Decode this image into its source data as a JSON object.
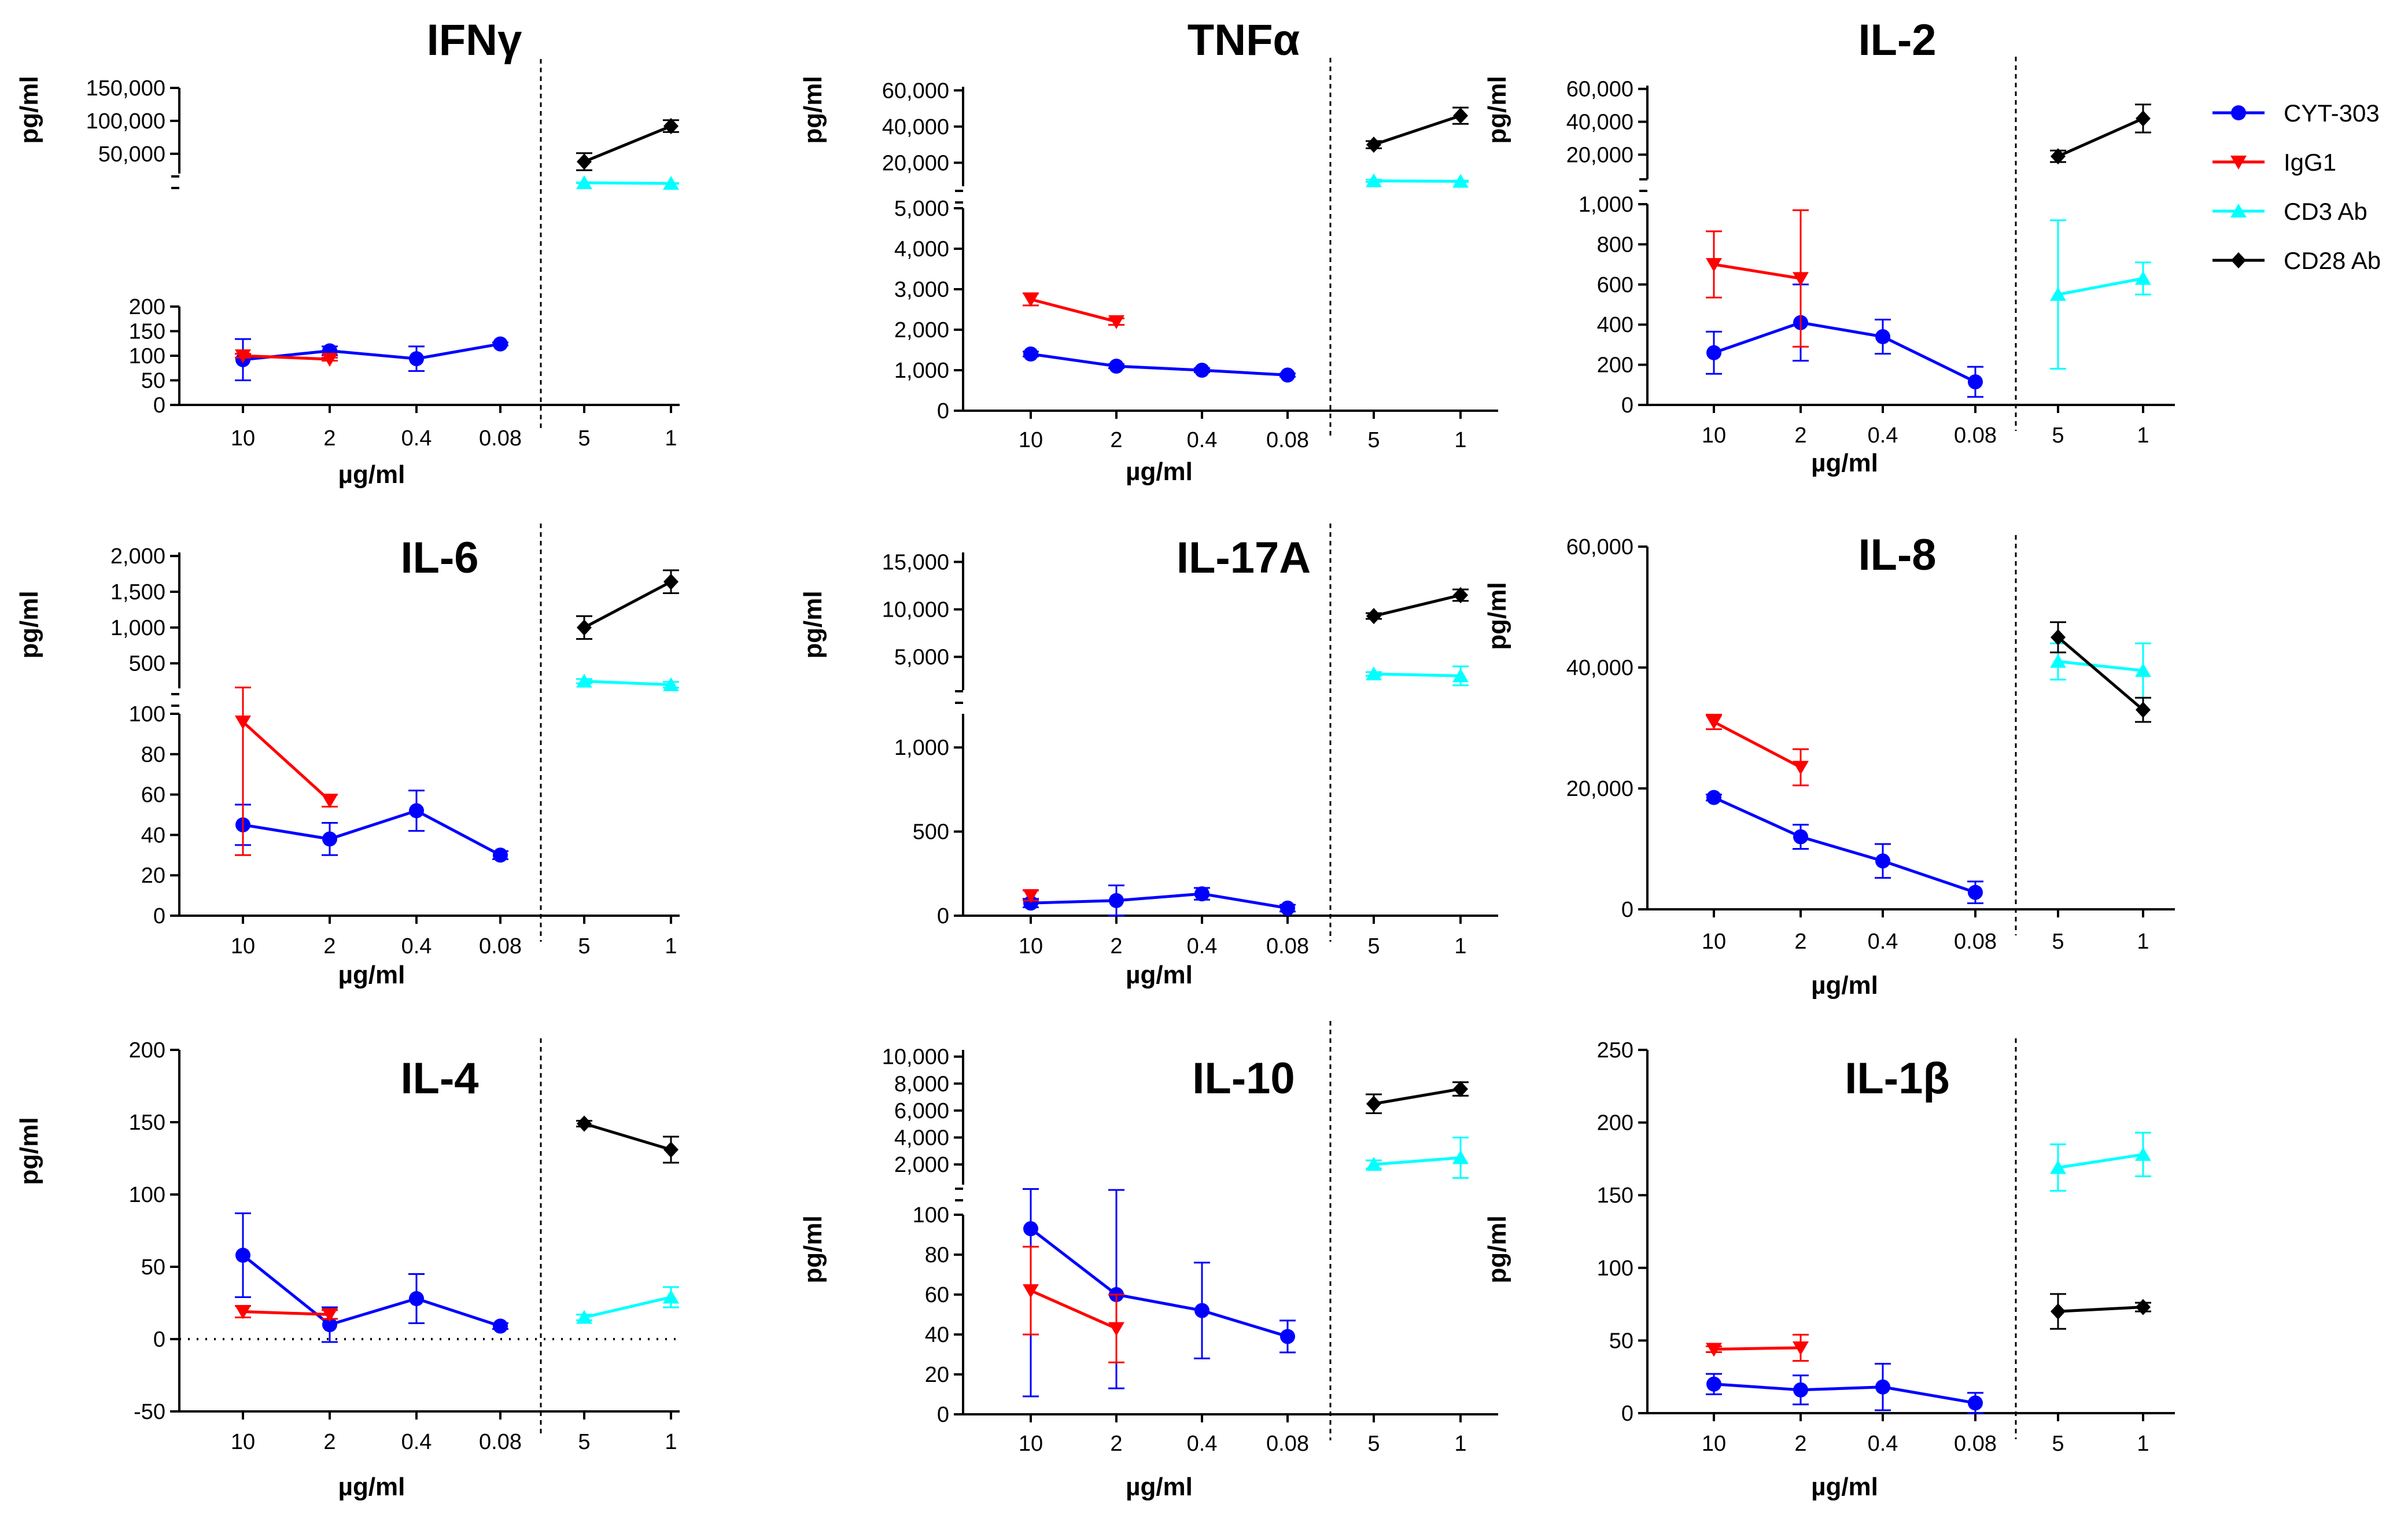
{
  "x_categories_left": [
    "10",
    "2",
    "0.4",
    "0.08"
  ],
  "x_categories_right": [
    "5",
    "1"
  ],
  "series_styles": {
    "CYT-303": {
      "color": "#0000ff",
      "marker": "circle"
    },
    "IgG1": {
      "color": "#ff0000",
      "marker": "triangle-down"
    },
    "CD3 Ab": {
      "color": "#00ffff",
      "marker": "triangle-up"
    },
    "CD28 Ab": {
      "color": "#000000",
      "marker": "diamond"
    }
  },
  "legend": {
    "items": [
      {
        "label": "CYT-303",
        "color": "#0000ff",
        "marker": "circle"
      },
      {
        "label": "IgG1",
        "color": "#ff0000",
        "marker": "triangle-down"
      },
      {
        "label": "CD3 Ab",
        "color": "#00ffff",
        "marker": "triangle-up"
      },
      {
        "label": "CD28 Ab",
        "color": "#000000",
        "marker": "diamond"
      }
    ]
  },
  "chart_data": [
    {
      "type": "line",
      "title": "IFNγ",
      "xlabel": "µg/ml",
      "ylabel": "pg/ml",
      "lower": {
        "ylim": [
          0,
          200
        ],
        "ticks": [
          "0",
          "50",
          "100",
          "150",
          "200"
        ]
      },
      "upper": {
        "ylim": [
          20000,
          150000
        ],
        "ticks": [
          "50,000",
          "100,000",
          "150,000"
        ]
      },
      "series": [
        {
          "name": "CYT-303",
          "group": "left",
          "values": [
            92,
            110,
            94,
            124
          ],
          "err": [
            42,
            9,
            25,
            3
          ]
        },
        {
          "name": "IgG1",
          "group": "left",
          "values": [
            100,
            93,
            null,
            null
          ],
          "err": [
            4,
            3,
            null,
            null
          ]
        },
        {
          "name": "CD3 Ab",
          "group": "right",
          "values": [
            6000,
            5000
          ],
          "err": [
            500,
            500
          ]
        },
        {
          "name": "CD28 Ab",
          "group": "right",
          "values": [
            38000,
            92000
          ],
          "err": [
            13000,
            9000
          ]
        }
      ]
    },
    {
      "type": "line",
      "title": "TNFα",
      "xlabel": "µg/ml",
      "ylabel": "pg/ml",
      "lower": {
        "ylim": [
          0,
          5000
        ],
        "ticks": [
          "0",
          "1,000",
          "2,000",
          "3,000",
          "4,000",
          "5,000"
        ]
      },
      "upper": {
        "ylim": [
          7000,
          62000
        ],
        "ticks": [
          "20,000",
          "40,000",
          "60,000"
        ]
      },
      "series": [
        {
          "name": "CYT-303",
          "group": "left",
          "values": [
            1400,
            1100,
            1000,
            880
          ],
          "err": [
            60,
            50,
            50,
            40
          ]
        },
        {
          "name": "IgG1",
          "group": "left",
          "values": [
            2750,
            2200,
            null,
            null
          ],
          "err": [
            150,
            80,
            null,
            null
          ]
        },
        {
          "name": "CD3 Ab",
          "group": "right",
          "values": [
            10000,
            9700
          ],
          "err": [
            600,
            400
          ]
        },
        {
          "name": "CD28 Ab",
          "group": "right",
          "values": [
            30000,
            46000
          ],
          "err": [
            2000,
            4500
          ]
        }
      ]
    },
    {
      "type": "line",
      "title": "IL-2",
      "xlabel": "µg/ml",
      "ylabel": "pg/ml",
      "lower": {
        "ylim": [
          0,
          1000
        ],
        "ticks": [
          "0",
          "200",
          "400",
          "600",
          "800",
          "1,000"
        ]
      },
      "upper": {
        "ylim": [
          5000,
          62000
        ],
        "ticks": [
          "20,000",
          "40,000",
          "60,000"
        ]
      },
      "series": [
        {
          "name": "CYT-303",
          "group": "left",
          "values": [
            260,
            410,
            340,
            115
          ],
          "err": [
            105,
            190,
            85,
            75
          ]
        },
        {
          "name": "IgG1",
          "group": "left",
          "values": [
            700,
            630,
            null,
            null
          ],
          "err": [
            165,
            340,
            null,
            null
          ]
        },
        {
          "name": "CD3 Ab",
          "group": "right",
          "values": [
            550,
            630
          ],
          "err": [
            370,
            80
          ]
        },
        {
          "name": "CD28 Ab",
          "group": "right",
          "values": [
            19000,
            42000
          ],
          "err": [
            3500,
            8500
          ]
        }
      ]
    },
    {
      "type": "line",
      "title": "IL-6",
      "xlabel": "µg/ml",
      "ylabel": "pg/ml",
      "lower": {
        "ylim": [
          0,
          100
        ],
        "ticks": [
          "0",
          "20",
          "40",
          "60",
          "80",
          "100"
        ]
      },
      "upper": {
        "ylim": [
          150,
          2050
        ],
        "ticks": [
          "500",
          "1,000",
          "1,500",
          "2,000"
        ]
      },
      "series": [
        {
          "name": "CYT-303",
          "group": "left",
          "values": [
            45,
            38,
            52,
            30
          ],
          "err": [
            10,
            8,
            10,
            2
          ]
        },
        {
          "name": "IgG1",
          "group": "left",
          "values": [
            96,
            57,
            null,
            null
          ],
          "err": [
            66,
            3,
            null,
            null
          ]
        },
        {
          "name": "CD3 Ab",
          "group": "right",
          "values": [
            250,
            200
          ],
          "err": [
            30,
            40
          ]
        },
        {
          "name": "CD28 Ab",
          "group": "right",
          "values": [
            1000,
            1640
          ],
          "err": [
            160,
            160
          ]
        }
      ]
    },
    {
      "type": "line",
      "title": "IL-17A",
      "xlabel": "µg/ml",
      "ylabel": "pg/ml",
      "lower": {
        "ylim": [
          0,
          1200
        ],
        "ticks": [
          "0",
          "500",
          "1,000"
        ]
      },
      "upper": {
        "ylim": [
          1500,
          16000
        ],
        "ticks": [
          "5,000",
          "10,000",
          "15,000"
        ]
      },
      "series": [
        {
          "name": "CYT-303",
          "group": "left",
          "values": [
            75,
            90,
            130,
            45
          ],
          "err": [
            25,
            90,
            35,
            20
          ]
        },
        {
          "name": "IgG1",
          "group": "left",
          "values": [
            120,
            null,
            null,
            null
          ],
          "err": [
            30,
            null,
            null,
            null
          ]
        },
        {
          "name": "CD3 Ab",
          "group": "right",
          "values": [
            3200,
            3000
          ],
          "err": [
            200,
            1000
          ]
        },
        {
          "name": "CD28 Ab",
          "group": "right",
          "values": [
            9300,
            11500
          ],
          "err": [
            300,
            600
          ]
        }
      ]
    },
    {
      "type": "line",
      "title": "IL-8",
      "xlabel": "µg/ml",
      "ylabel": "pg/ml",
      "ylim": [
        0,
        60000
      ],
      "ticks": [
        "0",
        "20,000",
        "40,000",
        "60,000"
      ],
      "series": [
        {
          "name": "CYT-303",
          "group": "left",
          "values": [
            18500,
            12000,
            8000,
            2800
          ],
          "err": [
            500,
            2000,
            2800,
            1800
          ]
        },
        {
          "name": "IgG1",
          "group": "left",
          "values": [
            31000,
            23500,
            null,
            null
          ],
          "err": [
            1200,
            3000,
            null,
            null
          ]
        },
        {
          "name": "CD3 Ab",
          "group": "right",
          "values": [
            41000,
            39500
          ],
          "err": [
            3000,
            4500
          ]
        },
        {
          "name": "CD28 Ab",
          "group": "right",
          "values": [
            45000,
            33000
          ],
          "err": [
            2500,
            2000
          ]
        }
      ]
    },
    {
      "type": "line",
      "title": "IL-4",
      "xlabel": "µg/ml",
      "ylabel": "pg/ml",
      "ylim": [
        -50,
        200
      ],
      "ticks": [
        "-50",
        "0",
        "50",
        "100",
        "150",
        "200"
      ],
      "series": [
        {
          "name": "CYT-303",
          "group": "left",
          "values": [
            58,
            10,
            28,
            9
          ],
          "err": [
            29,
            12,
            17,
            2
          ]
        },
        {
          "name": "IgG1",
          "group": "left",
          "values": [
            19,
            17,
            null,
            null
          ],
          "err": [
            4,
            3,
            null,
            null
          ]
        },
        {
          "name": "CD3 Ab",
          "group": "right",
          "values": [
            15,
            29
          ],
          "err": [
            2,
            7
          ]
        },
        {
          "name": "CD28 Ab",
          "group": "right",
          "values": [
            149,
            131
          ],
          "err": [
            2,
            9
          ]
        }
      ]
    },
    {
      "type": "line",
      "title": "IL-10",
      "xlabel": "µg/ml",
      "ylabel": "pg/ml",
      "lower": {
        "ylim": [
          0,
          100
        ],
        "ticks": [
          "0",
          "20",
          "40",
          "60",
          "80",
          "100"
        ]
      },
      "upper": {
        "ylim": [
          500,
          10500
        ],
        "ticks": [
          "2,000",
          "4,000",
          "6,000",
          "8,000",
          "10,000"
        ]
      },
      "series": [
        {
          "name": "CYT-303",
          "group": "left",
          "values": [
            93,
            60,
            52,
            39
          ],
          "err": [
            84,
            47,
            24,
            8
          ]
        },
        {
          "name": "IgG1",
          "group": "left",
          "values": [
            62,
            43,
            null,
            null
          ],
          "err": [
            22,
            17,
            null,
            null
          ]
        },
        {
          "name": "CD3 Ab",
          "group": "right",
          "values": [
            2000,
            2500
          ],
          "err": [
            300,
            1500
          ]
        },
        {
          "name": "CD28 Ab",
          "group": "right",
          "values": [
            6500,
            7600
          ],
          "err": [
            700,
            500
          ]
        }
      ]
    },
    {
      "type": "line",
      "title": "IL-1β",
      "xlabel": "µg/ml",
      "ylabel": "pg/ml",
      "ylim": [
        0,
        250
      ],
      "ticks": [
        "0",
        "50",
        "100",
        "150",
        "200",
        "250"
      ],
      "series": [
        {
          "name": "CYT-303",
          "group": "left",
          "values": [
            20,
            16,
            18,
            7
          ],
          "err": [
            7,
            10,
            16,
            7
          ]
        },
        {
          "name": "IgG1",
          "group": "left",
          "values": [
            44,
            45,
            null,
            null
          ],
          "err": [
            2,
            9,
            null,
            null
          ]
        },
        {
          "name": "CD3 Ab",
          "group": "right",
          "values": [
            169,
            178
          ],
          "err": [
            16,
            15
          ]
        },
        {
          "name": "CD28 Ab",
          "group": "right",
          "values": [
            70,
            73
          ],
          "err": [
            12,
            3
          ]
        }
      ]
    }
  ]
}
